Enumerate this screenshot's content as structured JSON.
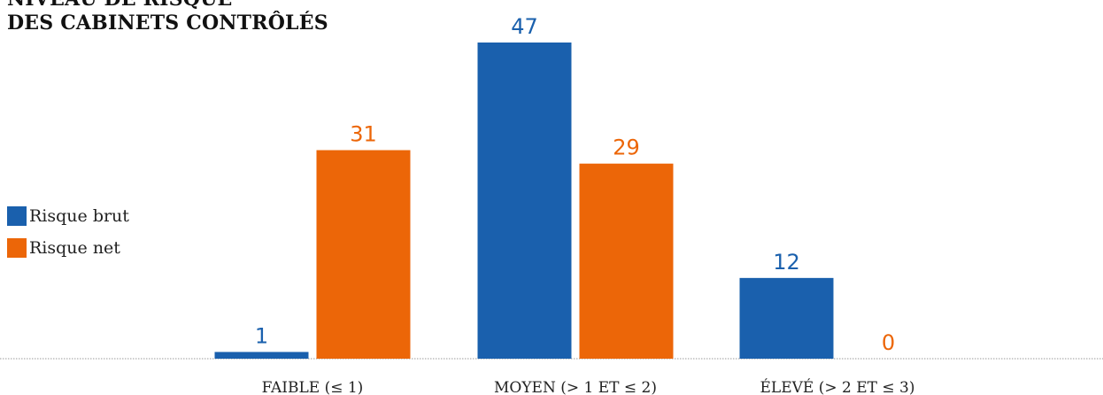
{
  "chart_data": {
    "type": "bar",
    "title_lines": [
      "NIVEAU DE RISQUE",
      "DES CABINETS CONTRÔLÉS"
    ],
    "categories": [
      "FAIBLE (≤ 1)",
      "MOYEN (> 1 ET ≤ 2)",
      "ÉLEVÉ (> 2 ET ≤ 3)"
    ],
    "series": [
      {
        "name": "Risque brut",
        "values": [
          1,
          47,
          12
        ],
        "color": "#1a60ad"
      },
      {
        "name": "Risque net",
        "values": [
          31,
          29,
          0
        ],
        "color": "#ec6608"
      }
    ],
    "ylim": [
      0,
      47
    ],
    "legend_position": "left",
    "grid": false
  }
}
